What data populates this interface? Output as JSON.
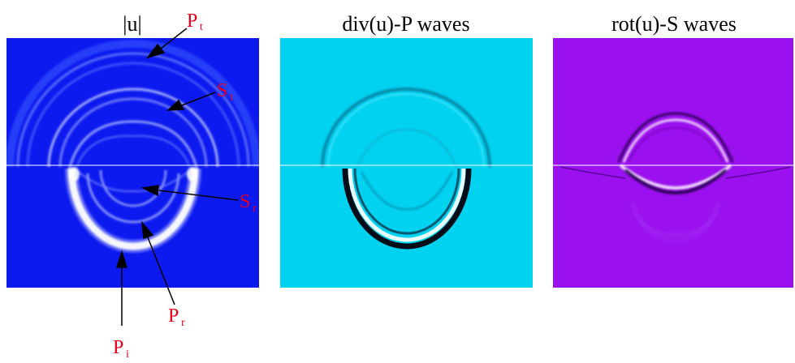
{
  "panels": [
    {
      "title": "|u|",
      "background": "#0c1af0"
    },
    {
      "title": "div(u)-P waves",
      "background": "#00d2f0"
    },
    {
      "title": "rot(u)-S waves",
      "background": "#9a10ee"
    }
  ],
  "annotations": {
    "pt": {
      "main": "P",
      "sub": "t"
    },
    "st": {
      "main": "S",
      "sub": "t"
    },
    "sr": {
      "main": "S",
      "sub": "r"
    },
    "pr": {
      "main": "P",
      "sub": "r"
    },
    "pi": {
      "main": "P",
      "sub": "i"
    }
  },
  "colors": {
    "label": "#e8001c",
    "arrow": "#000000",
    "interface": "#ffffff"
  }
}
